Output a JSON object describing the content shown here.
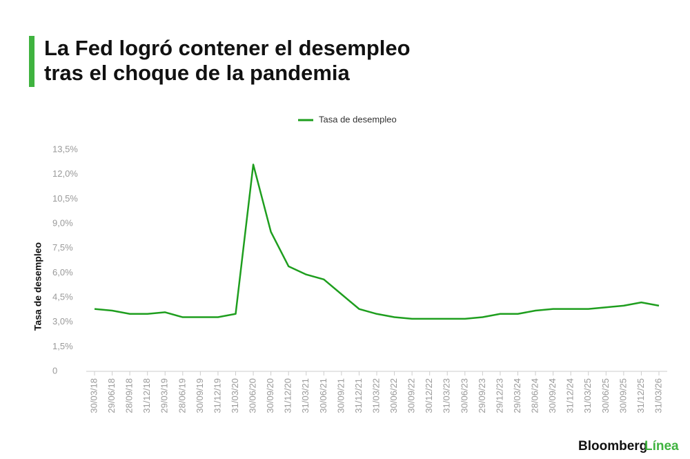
{
  "chart_data": {
    "type": "line",
    "title": [
      "La Fed logró contener el desempleo",
      "tras el choque de la pandemia"
    ],
    "y_label": "Tasa de desempleo",
    "categories": [
      "30/03/18",
      "29/06/18",
      "28/09/18",
      "31/12/18",
      "29/03/19",
      "28/06/19",
      "30/09/19",
      "31/12/19",
      "31/03/20",
      "30/06/20",
      "30/09/20",
      "31/12/20",
      "31/03/21",
      "30/06/21",
      "30/09/21",
      "31/12/21",
      "31/03/22",
      "30/06/22",
      "30/09/22",
      "30/12/22",
      "31/03/23",
      "30/06/23",
      "29/09/23",
      "29/12/23",
      "29/03/24",
      "28/06/24",
      "30/09/24",
      "31/12/24",
      "31/03/25",
      "30/06/25",
      "30/09/25",
      "31/12/25",
      "31/03/26"
    ],
    "series": [
      {
        "name": "Tasa de desempleo",
        "color": "#1e9e1e",
        "values": [
          3.8,
          3.7,
          3.5,
          3.5,
          3.6,
          3.3,
          3.3,
          3.3,
          3.5,
          12.6,
          8.5,
          6.4,
          5.9,
          5.6,
          4.7,
          3.8,
          3.5,
          3.3,
          3.2,
          3.2,
          3.2,
          3.2,
          3.3,
          3.5,
          3.5,
          3.7,
          3.8,
          3.8,
          3.8,
          3.9,
          4.0,
          4.2,
          4.0
        ]
      }
    ],
    "ylim": [
      0,
      13.5
    ],
    "yticks": [
      0,
      {
        "value": 1.5,
        "label": "1,5%"
      },
      {
        "value": 3,
        "label": "3,0%"
      },
      {
        "value": 4.5,
        "label": "4,5%"
      },
      {
        "value": 6,
        "label": "6,0%"
      },
      {
        "value": 7.5,
        "label": "7,5%"
      },
      {
        "value": 9,
        "label": "9,0%"
      },
      {
        "value": 10.5,
        "label": "10,5%"
      },
      {
        "value": 12,
        "label": "12,0%"
      },
      {
        "value": 13.5,
        "label": "13,5%"
      }
    ],
    "grid": false,
    "legend": "top",
    "source_logo": [
      "Bloomberg",
      "Línea"
    ]
  }
}
